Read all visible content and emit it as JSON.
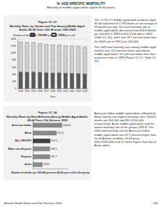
{
  "page": {
    "section": "IV. AGE-SPECIFIC MORTALITY",
    "subtitle": "Mortality of middle-aged adults (aged 45-64 years)",
    "text_1": [
      "The 1,176,177 middle-aged adult residents aged 45-64 experienced 7,078 deaths or an average of 19 deaths per day. The total mortality rate of middle-aged adults decreased from 656.8 deaths per 100,000 in 1993 to 601.0/100,000 in 2003 (Table 1C-10), and it was 19.7 percent lower than the 2003 rate of 748.2 per 100,000.",
      "The 2003 total mortality rate among middle-aged females was 12.6 percent lower and among middle-aged males 10.5 percent lower than their respective rates in 1993 (Figure 1C-17, Table 1C-10)."
    ],
    "text_2": [
      "American Indian middle-aged adults, followed by Black had the two highest mortality rates (1004.6 deaths per 100,000 and 812.0/100,000, respectively). Asian middle-aged adults had the lowest mortality rate of the groups (328.9). The 2003 total mortality rate for American Indian middle-aged adults was 67.1 percent higher than for all Arizona residents 45-64 years (601.0/100,000) and 3.1 times higher than that of Asian adults."
    ],
    "footer": "Arizona Health Status and Vital Statistics 2003",
    "page_number": "105"
  },
  "chart_data": [
    {
      "type": "bar",
      "stacked": true,
      "figure": "Figure 1C-17",
      "title": "Mortality Rates by Gender and Year Among Middle-Aged Adults 45-64 Years Old, Arizona, 1993-2003",
      "ylabel": "Number of deaths per 100,000 persons 45-64 years old",
      "xlabel": "Year",
      "categories": [
        "1993",
        "1994",
        "1995",
        "1996",
        "1997",
        "1998",
        "1999",
        "2000",
        "2001",
        "2002",
        "2003"
      ],
      "series": [
        {
          "name": "Female",
          "color": "#5a5a5a",
          "values": [
            470.2,
            463.1,
            468.4,
            455.7,
            447.3,
            440.9,
            446.2,
            432.5,
            428.8,
            425.3,
            410.9
          ]
        },
        {
          "name": "Male",
          "color": "#d0d0d0",
          "values": [
            852.4,
            845.9,
            838.1,
            820.6,
            806.2,
            798.7,
            792.4,
            781.3,
            776.9,
            769.5,
            762.9
          ]
        }
      ],
      "ylim": [
        0,
        1400
      ],
      "yticks": [
        0,
        200,
        400,
        600,
        800,
        1000,
        1200,
        1400
      ],
      "grid": true,
      "legend": "top"
    },
    {
      "type": "bar",
      "orientation": "horizontal",
      "figure": "Figure 1C-18",
      "title": "Mortality Rates by Race/Ethnicity Among Middle-Aged Adults 45-64 Years Old, Arizona, 2003",
      "xlabel": "Number of deaths per 100,000 persons 45-64 years old in the group",
      "categories": [
        "American Indian",
        "Black",
        "ALL GROUPS",
        "White non-Hispanic",
        "Hispanic",
        "Asian"
      ],
      "values": [
        1004.6,
        812.0,
        601.0,
        583.5,
        587.7,
        328.9
      ],
      "value_labels": [
        "1004.6",
        "812.0",
        "601.0",
        "583.5",
        "587.7",
        "328.9"
      ],
      "colors": [
        "#8c8c8c",
        "#8c8c8c",
        "#3f3f3f",
        "#8c8c8c",
        "#8c8c8c",
        "#8c8c8c"
      ],
      "xlim": [
        0,
        1200
      ],
      "data_labels": true,
      "tick_labels": "y"
    }
  ]
}
